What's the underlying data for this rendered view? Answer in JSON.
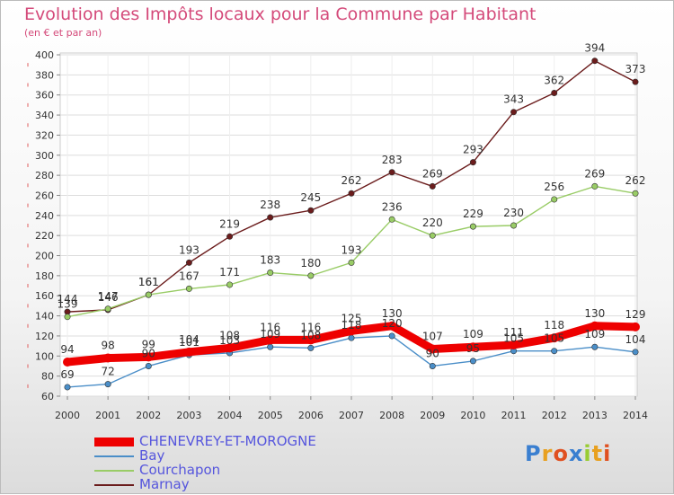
{
  "title": "Evolution des Impôts locaux pour la Commune par Habitant",
  "subtitle": "(en € et par an)",
  "logo": "Proxiti",
  "chart_data": {
    "type": "line",
    "title": "Evolution des Impôts locaux pour la Commune par Habitant",
    "ylabel": "(en € et par an)",
    "xlabel": "",
    "ylim": [
      60,
      400
    ],
    "ytick_step": 20,
    "categories": [
      "2000",
      "2001",
      "2002",
      "2003",
      "2004",
      "2005",
      "2006",
      "2007",
      "2008",
      "2009",
      "2010",
      "2011",
      "2012",
      "2013",
      "2014"
    ],
    "series": [
      {
        "name": "CHENEVREY-ET-MOROGNE",
        "color": "#ee0000",
        "values": [
          94,
          98,
          99,
          104,
          108,
          116,
          116,
          125,
          130,
          107,
          109,
          111,
          118,
          130,
          129
        ],
        "labels": [
          "94",
          "98",
          "99",
          "104",
          "108",
          "116",
          "116",
          "125",
          "130",
          "107",
          "109",
          "111",
          "118",
          "130",
          "129"
        ]
      },
      {
        "name": "Bay",
        "color": "#4a8ec8",
        "values": [
          69,
          72,
          90,
          101,
          103,
          109,
          108,
          118,
          120,
          90,
          95,
          105,
          105,
          109,
          104
        ],
        "labels": [
          "69",
          "72",
          "90",
          "101",
          "103",
          "109",
          "108",
          "118",
          "120",
          "90",
          "95",
          "105",
          "105",
          "109",
          "104"
        ]
      },
      {
        "name": "Courchapon",
        "color": "#99cc66",
        "values": [
          139,
          147,
          161,
          167,
          171,
          183,
          180,
          193,
          236,
          220,
          229,
          230,
          256,
          269,
          262
        ],
        "labels": [
          "139",
          "147",
          "161",
          "167",
          "171",
          "183",
          "180",
          "193",
          "236",
          "220",
          "229",
          "230",
          "256",
          "269",
          "262"
        ]
      },
      {
        "name": "Marnay",
        "color": "#6b1c1c",
        "values": [
          144,
          146,
          161,
          193,
          219,
          238,
          245,
          262,
          283,
          269,
          293,
          343,
          362,
          394,
          373
        ],
        "labels": [
          "144",
          "146",
          "161",
          "193",
          "219",
          "238",
          "245",
          "262",
          "283",
          "269",
          "293",
          "343",
          "362",
          "394",
          "373"
        ]
      }
    ],
    "legend": {
      "position": "bottom-left",
      "entries": [
        "CHENEVREY-ET-MOROGNE",
        "Bay",
        "Courchapon",
        "Marnay"
      ]
    }
  }
}
